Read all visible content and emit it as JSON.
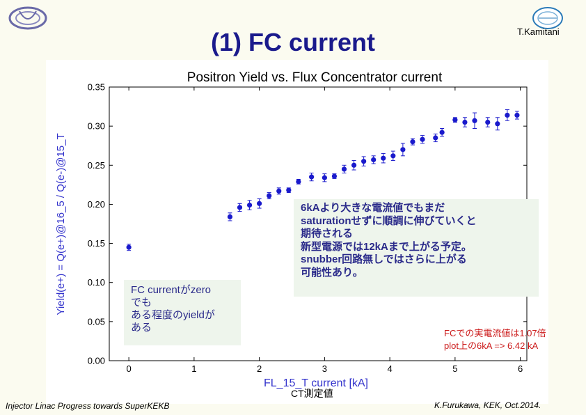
{
  "slide": {
    "title": "(1) FC current",
    "author": "T.Kamitani",
    "footer_left": "Injector Linac Progress towards SuperKEKB",
    "footer_right": "K.Furukawa, KEK, Oct.2014.",
    "ct_label": "CT測定値"
  },
  "annotations": {
    "box1_lines": [
      "FC currentがzero",
      "でも",
      "ある程度のyieldが",
      "ある"
    ],
    "box2_lines": [
      "6kAより大きな電流値でもまだ",
      "saturationせずに順調に伸びていくと",
      "期待される",
      "新型電源では12kAまで上がる予定。",
      "snubber回路無しではさらに上がる",
      "可能性あり。"
    ],
    "note_red_lines": [
      "FCでの実電流値は1.07倍",
      "plot上の6kA => 6.42 kA"
    ]
  },
  "colors": {
    "title": "#1a1a8c",
    "points": "#1a1acc",
    "axis_label": "#3333cc",
    "note_red": "#cc1a1a",
    "box_bg": "#eef5ec"
  },
  "chart_data": {
    "type": "scatter",
    "title": "Positron Yield vs. Flux Concentrator current",
    "xlabel": "FL_15_T current [kA]",
    "ylabel": "Yield(e+) = Q(e+)@16_5 / Q(e-)@15_T",
    "xlim": [
      -0.3,
      6.1
    ],
    "ylim": [
      0.0,
      0.35
    ],
    "xticks": [
      "0",
      "1",
      "2",
      "3",
      "4",
      "5",
      "6"
    ],
    "yticks": [
      "0.00",
      "0.05",
      "0.10",
      "0.15",
      "0.20",
      "0.25",
      "0.30",
      "0.35"
    ],
    "grid": false,
    "error_bars": true,
    "points": [
      {
        "x": 0.0,
        "y": 0.145,
        "err": 0.004
      },
      {
        "x": 1.55,
        "y": 0.184,
        "err": 0.005
      },
      {
        "x": 1.7,
        "y": 0.196,
        "err": 0.005
      },
      {
        "x": 1.85,
        "y": 0.199,
        "err": 0.006
      },
      {
        "x": 2.0,
        "y": 0.201,
        "err": 0.006
      },
      {
        "x": 2.15,
        "y": 0.211,
        "err": 0.004
      },
      {
        "x": 2.3,
        "y": 0.217,
        "err": 0.004
      },
      {
        "x": 2.45,
        "y": 0.218,
        "err": 0.003
      },
      {
        "x": 2.6,
        "y": 0.229,
        "err": 0.003
      },
      {
        "x": 2.8,
        "y": 0.235,
        "err": 0.005
      },
      {
        "x": 3.0,
        "y": 0.234,
        "err": 0.005
      },
      {
        "x": 3.15,
        "y": 0.236,
        "err": 0.003
      },
      {
        "x": 3.3,
        "y": 0.245,
        "err": 0.005
      },
      {
        "x": 3.45,
        "y": 0.25,
        "err": 0.006
      },
      {
        "x": 3.6,
        "y": 0.255,
        "err": 0.006
      },
      {
        "x": 3.75,
        "y": 0.257,
        "err": 0.005
      },
      {
        "x": 3.9,
        "y": 0.259,
        "err": 0.006
      },
      {
        "x": 4.05,
        "y": 0.262,
        "err": 0.006
      },
      {
        "x": 4.2,
        "y": 0.27,
        "err": 0.008
      },
      {
        "x": 4.35,
        "y": 0.28,
        "err": 0.004
      },
      {
        "x": 4.5,
        "y": 0.283,
        "err": 0.005
      },
      {
        "x": 4.7,
        "y": 0.285,
        "err": 0.005
      },
      {
        "x": 4.8,
        "y": 0.292,
        "err": 0.005
      },
      {
        "x": 5.0,
        "y": 0.308,
        "err": 0.003
      },
      {
        "x": 5.15,
        "y": 0.305,
        "err": 0.006
      },
      {
        "x": 5.3,
        "y": 0.307,
        "err": 0.01
      },
      {
        "x": 5.5,
        "y": 0.305,
        "err": 0.006
      },
      {
        "x": 5.65,
        "y": 0.303,
        "err": 0.008
      },
      {
        "x": 5.8,
        "y": 0.314,
        "err": 0.007
      },
      {
        "x": 5.95,
        "y": 0.314,
        "err": 0.005
      }
    ]
  }
}
